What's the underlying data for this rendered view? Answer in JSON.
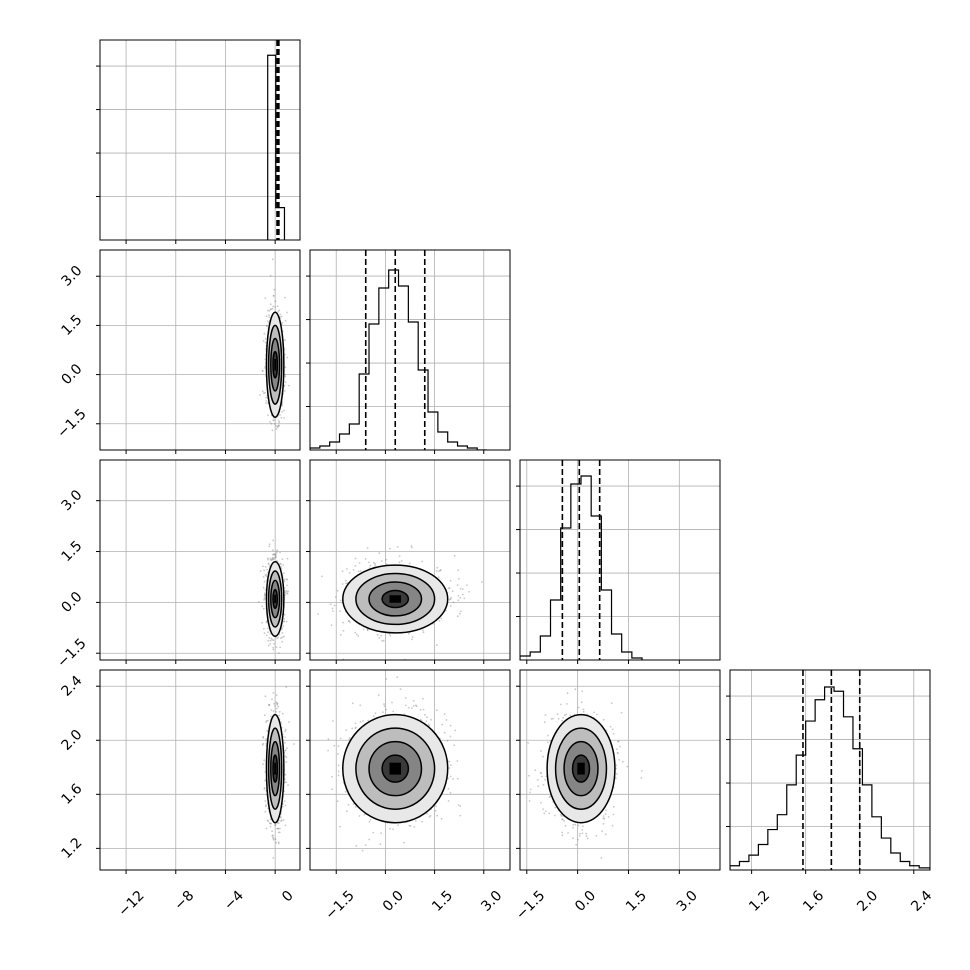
{
  "chart_data": {
    "type": "corner",
    "params": [
      "p0",
      "p1",
      "p2",
      "p3"
    ],
    "ranges": [
      [
        -14.1,
        2.0
      ],
      [
        -2.3,
        3.8
      ],
      [
        -1.7,
        4.2
      ],
      [
        1.04,
        2.52
      ]
    ],
    "ticks": [
      [
        -12,
        -8,
        -4,
        0
      ],
      [
        -1.5,
        0.0,
        1.5,
        3.0
      ],
      [
        -1.5,
        0.0,
        1.5,
        3.0
      ],
      [
        1.2,
        1.6,
        2.0,
        2.4
      ]
    ],
    "tick_labels": [
      [
        "−12",
        "−8",
        "−4",
        "0"
      ],
      [
        "−1.5",
        "0.0",
        "1.5",
        "3.0"
      ],
      [
        "−1.5",
        "0.0",
        "1.5",
        "3.0"
      ],
      [
        "1.2",
        "1.6",
        "2.0",
        "2.4"
      ]
    ],
    "histograms": [
      {
        "bins": [
          [
            -0.6,
            0.05,
            0.97
          ],
          [
            0.05,
            0.75,
            0.17
          ]
        ],
        "quantiles": [
          0.15,
          0.22,
          0.3
        ],
        "ymax": 1.05
      },
      {
        "bins": [
          [
            -2.3,
            -2.0,
            0.01
          ],
          [
            -2.0,
            -1.7,
            0.02
          ],
          [
            -1.7,
            -1.4,
            0.04
          ],
          [
            -1.4,
            -1.1,
            0.08
          ],
          [
            -1.1,
            -0.8,
            0.13
          ],
          [
            -0.8,
            -0.5,
            0.38
          ],
          [
            -0.5,
            -0.2,
            0.63
          ],
          [
            -0.2,
            0.1,
            0.81
          ],
          [
            0.1,
            0.4,
            0.9
          ],
          [
            0.4,
            0.7,
            0.82
          ],
          [
            0.7,
            1.0,
            0.64
          ],
          [
            1.0,
            1.3,
            0.4
          ],
          [
            1.3,
            1.6,
            0.19
          ],
          [
            1.6,
            1.9,
            0.09
          ],
          [
            1.9,
            2.2,
            0.04
          ],
          [
            2.2,
            2.5,
            0.02
          ],
          [
            2.5,
            2.8,
            0.01
          ],
          [
            2.8,
            3.1,
            0.0
          ]
        ],
        "quantiles": [
          -0.6,
          0.3,
          1.2
        ],
        "ymax": 1.0
      },
      {
        "bins": [
          [
            -1.7,
            -1.4,
            0.02
          ],
          [
            -1.4,
            -1.1,
            0.04
          ],
          [
            -1.1,
            -0.8,
            0.12
          ],
          [
            -0.8,
            -0.5,
            0.3
          ],
          [
            -0.5,
            -0.2,
            0.66
          ],
          [
            -0.2,
            0.1,
            0.88
          ],
          [
            0.1,
            0.4,
            0.92
          ],
          [
            0.4,
            0.7,
            0.72
          ],
          [
            0.7,
            1.0,
            0.35
          ],
          [
            1.0,
            1.3,
            0.13
          ],
          [
            1.3,
            1.6,
            0.04
          ],
          [
            1.6,
            1.9,
            0.01
          ]
        ],
        "quantiles": [
          -0.45,
          0.05,
          0.65
        ],
        "ymax": 1.0
      },
      {
        "bins": [
          [
            1.04,
            1.11,
            0.02
          ],
          [
            1.11,
            1.18,
            0.04
          ],
          [
            1.18,
            1.25,
            0.07
          ],
          [
            1.25,
            1.32,
            0.12
          ],
          [
            1.32,
            1.39,
            0.19
          ],
          [
            1.39,
            1.46,
            0.26
          ],
          [
            1.46,
            1.53,
            0.4
          ],
          [
            1.53,
            1.6,
            0.54
          ],
          [
            1.6,
            1.67,
            0.7
          ],
          [
            1.67,
            1.74,
            0.8
          ],
          [
            1.74,
            1.81,
            0.86
          ],
          [
            1.81,
            1.88,
            0.84
          ],
          [
            1.88,
            1.95,
            0.72
          ],
          [
            1.95,
            2.02,
            0.57
          ],
          [
            2.02,
            2.09,
            0.4
          ],
          [
            2.09,
            2.16,
            0.25
          ],
          [
            2.16,
            2.23,
            0.15
          ],
          [
            2.23,
            2.3,
            0.08
          ],
          [
            2.3,
            2.37,
            0.04
          ],
          [
            2.37,
            2.44,
            0.02
          ],
          [
            2.44,
            2.52,
            0.01
          ]
        ],
        "quantiles": [
          1.58,
          1.79,
          2.0
        ],
        "ymax": 0.94
      }
    ],
    "pairs": [
      {
        "row": 1,
        "col": 0,
        "center": [
          0.0,
          0.3
        ],
        "sigma": [
          0.35,
          0.8
        ]
      },
      {
        "row": 2,
        "col": 0,
        "center": [
          0.0,
          0.1
        ],
        "sigma": [
          0.35,
          0.55
        ]
      },
      {
        "row": 2,
        "col": 1,
        "center": [
          0.3,
          0.1
        ],
        "sigma": [
          0.8,
          0.5
        ]
      },
      {
        "row": 3,
        "col": 0,
        "center": [
          0.0,
          1.79
        ],
        "sigma": [
          0.35,
          0.2
        ]
      },
      {
        "row": 3,
        "col": 1,
        "center": [
          0.3,
          1.79
        ],
        "sigma": [
          0.8,
          0.2
        ]
      },
      {
        "row": 3,
        "col": 2,
        "center": [
          0.1,
          1.79
        ],
        "sigma": [
          0.5,
          0.2
        ]
      }
    ],
    "contour_levels": [
      0.5,
      1.0,
      1.5,
      2.0
    ],
    "grid": true,
    "legend": "none"
  }
}
